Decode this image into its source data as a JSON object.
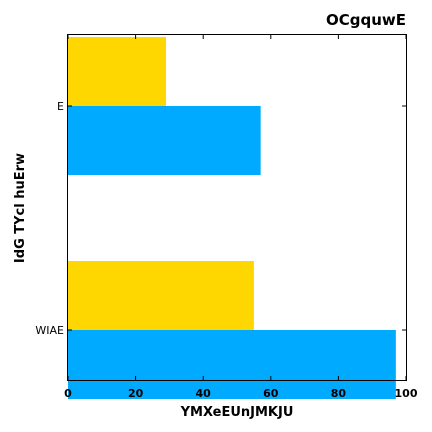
{
  "chart_data": {
    "type": "bar",
    "orientation": "horizontal",
    "title": "OCgquwE",
    "xlabel": "YMXeEUnJMKJU",
    "ylabel": "IdG TYcl huErw",
    "categories": [
      "WIAE",
      "E"
    ],
    "series": [
      {
        "values": [
          97,
          57
        ],
        "color": "#00aaff"
      },
      {
        "values": [
          55,
          29
        ],
        "color": "#ffd700"
      }
    ],
    "xlim": [
      0,
      100
    ],
    "xticks": [
      0,
      20,
      40,
      60,
      80,
      100
    ],
    "grid": false
  }
}
